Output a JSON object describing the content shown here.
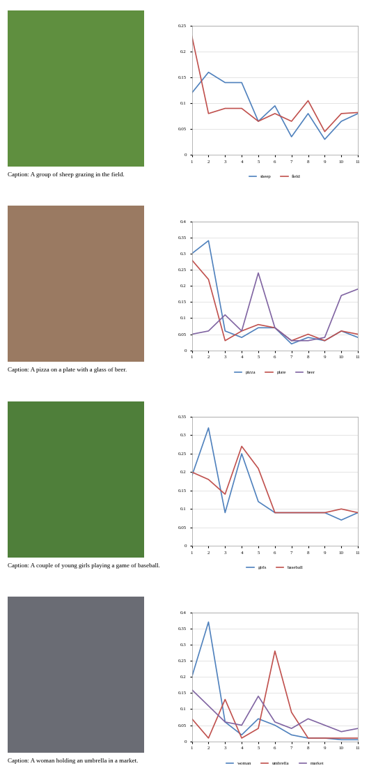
{
  "chart_data": [
    {
      "type": "line",
      "caption": "Caption: A group of sheep grazing in the field.",
      "x": [
        1,
        2,
        3,
        4,
        5,
        6,
        7,
        8,
        9,
        10,
        11
      ],
      "xlim": [
        1,
        11
      ],
      "xticks": [
        1,
        2,
        3,
        4,
        5,
        6,
        7,
        8,
        9,
        10,
        11
      ],
      "ylim": [
        0,
        0.25
      ],
      "yticks": [
        0,
        0.05,
        0.1,
        0.15,
        0.2,
        0.25
      ],
      "grid": true,
      "legend": "lower center",
      "series": [
        {
          "name": "sheep",
          "color": "#4f81bd",
          "values": [
            0.12,
            0.16,
            0.14,
            0.14,
            0.065,
            0.095,
            0.035,
            0.08,
            0.03,
            0.065,
            0.08
          ]
        },
        {
          "name": "field",
          "color": "#c0504d",
          "values": [
            0.23,
            0.08,
            0.09,
            0.09,
            0.065,
            0.08,
            0.065,
            0.105,
            0.045,
            0.08,
            0.082
          ]
        }
      ]
    },
    {
      "type": "line",
      "caption": "Caption: A pizza on a plate with a glass of beer.",
      "x": [
        1,
        2,
        3,
        4,
        5,
        6,
        7,
        8,
        9,
        10,
        11
      ],
      "xlim": [
        1,
        11
      ],
      "xticks": [
        1,
        2,
        3,
        4,
        5,
        6,
        7,
        8,
        9,
        10,
        11
      ],
      "ylim": [
        0,
        0.4
      ],
      "yticks": [
        0,
        0.05,
        0.1,
        0.15,
        0.2,
        0.25,
        0.3,
        0.35,
        0.4
      ],
      "grid": true,
      "legend": "lower center",
      "series": [
        {
          "name": "pizza",
          "color": "#4f81bd",
          "values": [
            0.3,
            0.34,
            0.06,
            0.04,
            0.07,
            0.07,
            0.02,
            0.04,
            0.03,
            0.06,
            0.04
          ]
        },
        {
          "name": "plate",
          "color": "#c0504d",
          "values": [
            0.28,
            0.22,
            0.03,
            0.06,
            0.08,
            0.07,
            0.03,
            0.05,
            0.03,
            0.06,
            0.05
          ]
        },
        {
          "name": "beer",
          "color": "#8064a2",
          "values": [
            0.05,
            0.06,
            0.11,
            0.06,
            0.24,
            0.07,
            0.03,
            0.03,
            0.04,
            0.17,
            0.19
          ]
        }
      ]
    },
    {
      "type": "line",
      "caption": "Caption: A couple of young girls playing a game of baseball.",
      "x": [
        1,
        2,
        3,
        4,
        5,
        6,
        7,
        8,
        9,
        10,
        11
      ],
      "xlim": [
        1,
        11
      ],
      "xticks": [
        1,
        2,
        3,
        4,
        5,
        6,
        7,
        8,
        9,
        10,
        11
      ],
      "ylim": [
        0,
        0.35
      ],
      "yticks": [
        0,
        0.05,
        0.1,
        0.15,
        0.2,
        0.25,
        0.3,
        0.35
      ],
      "grid": true,
      "legend": "lower center",
      "series": [
        {
          "name": "girls",
          "color": "#4f81bd",
          "values": [
            0.19,
            0.32,
            0.09,
            0.25,
            0.12,
            0.09,
            0.09,
            0.09,
            0.09,
            0.07,
            0.09
          ]
        },
        {
          "name": "baseball",
          "color": "#c0504d",
          "values": [
            0.2,
            0.18,
            0.14,
            0.27,
            0.21,
            0.09,
            0.09,
            0.09,
            0.09,
            0.1,
            0.09
          ]
        }
      ]
    },
    {
      "type": "line",
      "caption": "Caption: A woman holding an umbrella in a market.",
      "x": [
        1,
        2,
        3,
        4,
        5,
        6,
        7,
        8,
        9,
        10,
        11
      ],
      "xlim": [
        1,
        11
      ],
      "xticks": [
        1,
        2,
        3,
        4,
        5,
        6,
        7,
        8,
        9,
        10,
        11
      ],
      "ylim": [
        0,
        0.4
      ],
      "yticks": [
        0,
        0.05,
        0.1,
        0.15,
        0.2,
        0.25,
        0.3,
        0.35,
        0.4
      ],
      "grid": true,
      "legend": "lower center",
      "series": [
        {
          "name": "woman",
          "color": "#4f81bd",
          "values": [
            0.2,
            0.37,
            0.06,
            0.02,
            0.07,
            0.05,
            0.02,
            0.01,
            0.01,
            0.005,
            0.005
          ]
        },
        {
          "name": "umbrella",
          "color": "#c0504d",
          "values": [
            0.07,
            0.01,
            0.13,
            0.01,
            0.04,
            0.28,
            0.09,
            0.01,
            0.01,
            0.01,
            0.01
          ]
        },
        {
          "name": "market",
          "color": "#8064a2",
          "values": [
            0.16,
            0.11,
            0.06,
            0.05,
            0.14,
            0.06,
            0.04,
            0.07,
            0.05,
            0.03,
            0.04
          ]
        }
      ]
    }
  ]
}
